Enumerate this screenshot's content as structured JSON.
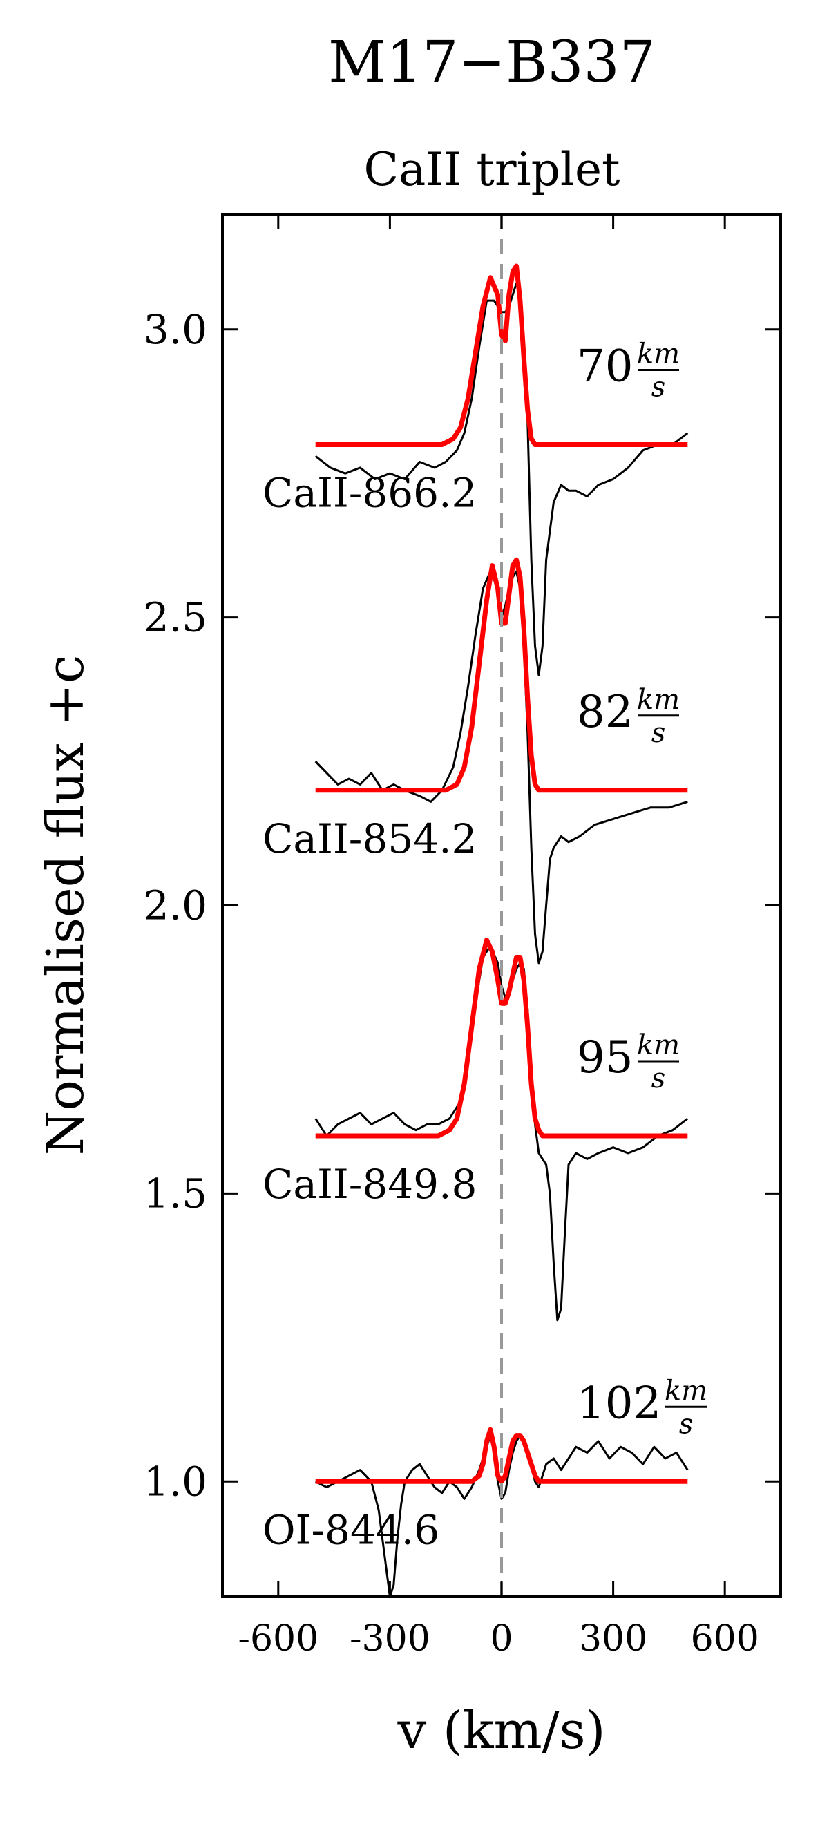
{
  "chart_data": {
    "type": "line",
    "title": "M17−B337",
    "subtitle": "CaII triplet",
    "xlabel": "v (km/s)",
    "ylabel": "Normalised flux +c",
    "xlim": [
      -750,
      750
    ],
    "ylim": [
      0.8,
      3.2
    ],
    "xticks": [
      -600,
      -300,
      0,
      300,
      600
    ],
    "xtick_labels": [
      "-600",
      "-300",
      "0",
      "300",
      "600"
    ],
    "yticks": [
      1.0,
      1.5,
      2.0,
      2.5,
      3.0
    ],
    "ytick_labels": [
      "1.0",
      "1.5",
      "2.0",
      "2.5",
      "3.0"
    ],
    "grid": false,
    "reference_line": {
      "x": 0,
      "style": "dashed",
      "color": "#999999"
    },
    "colors": {
      "observed": "#000000",
      "model": "#ff0000",
      "reference": "#999999"
    },
    "series": [
      {
        "label": "CaII-866.2",
        "width_value": "70",
        "width_unit_num": "km",
        "width_unit_den": "s",
        "observed": {
          "x": [
            -500,
            -460,
            -420,
            -380,
            -340,
            -300,
            -260,
            -220,
            -180,
            -150,
            -120,
            -100,
            -80,
            -60,
            -40,
            -20,
            0,
            10,
            20,
            30,
            40,
            50,
            60,
            70,
            80,
            90,
            100,
            110,
            120,
            140,
            160,
            180,
            200,
            230,
            260,
            300,
            340,
            380,
            420,
            460,
            500
          ],
          "y": [
            2.78,
            2.76,
            2.75,
            2.76,
            2.74,
            2.75,
            2.74,
            2.77,
            2.76,
            2.77,
            2.79,
            2.82,
            2.88,
            2.97,
            3.05,
            3.05,
            3.03,
            3.03,
            3.04,
            3.06,
            3.08,
            3.06,
            2.98,
            2.84,
            2.6,
            2.45,
            2.4,
            2.45,
            2.6,
            2.7,
            2.73,
            2.72,
            2.72,
            2.71,
            2.73,
            2.74,
            2.76,
            2.79,
            2.8,
            2.8,
            2.82
          ]
        },
        "model": {
          "x": [
            -500,
            -200,
            -160,
            -130,
            -110,
            -90,
            -70,
            -50,
            -30,
            -10,
            0,
            10,
            20,
            30,
            40,
            50,
            60,
            70,
            80,
            90,
            110,
            140,
            200,
            500
          ],
          "y": [
            2.8,
            2.8,
            2.8,
            2.81,
            2.83,
            2.88,
            2.96,
            3.04,
            3.09,
            3.06,
            2.99,
            2.98,
            3.06,
            3.1,
            3.11,
            3.05,
            2.95,
            2.86,
            2.81,
            2.8,
            2.8,
            2.8,
            2.8,
            2.8
          ]
        }
      },
      {
        "label": "CaII-854.2",
        "width_value": "82",
        "width_unit_num": "km",
        "width_unit_den": "s",
        "observed": {
          "x": [
            -500,
            -470,
            -440,
            -410,
            -380,
            -350,
            -320,
            -290,
            -260,
            -220,
            -190,
            -160,
            -130,
            -110,
            -90,
            -70,
            -50,
            -30,
            -10,
            0,
            10,
            20,
            30,
            40,
            50,
            60,
            70,
            80,
            90,
            100,
            110,
            120,
            130,
            140,
            160,
            180,
            210,
            250,
            300,
            350,
            400,
            450,
            500
          ],
          "y": [
            2.25,
            2.23,
            2.21,
            2.22,
            2.21,
            2.23,
            2.2,
            2.21,
            2.2,
            2.19,
            2.18,
            2.2,
            2.24,
            2.3,
            2.38,
            2.47,
            2.55,
            2.58,
            2.55,
            2.5,
            2.52,
            2.55,
            2.57,
            2.58,
            2.55,
            2.45,
            2.3,
            2.1,
            1.95,
            1.9,
            1.92,
            2.0,
            2.08,
            2.1,
            2.12,
            2.11,
            2.12,
            2.14,
            2.15,
            2.16,
            2.17,
            2.17,
            2.18
          ]
        },
        "model": {
          "x": [
            -500,
            -200,
            -150,
            -120,
            -100,
            -80,
            -60,
            -40,
            -25,
            -10,
            0,
            10,
            20,
            30,
            40,
            50,
            60,
            70,
            80,
            90,
            100,
            120,
            150,
            200,
            500
          ],
          "y": [
            2.2,
            2.2,
            2.2,
            2.21,
            2.24,
            2.31,
            2.42,
            2.53,
            2.59,
            2.55,
            2.49,
            2.49,
            2.54,
            2.59,
            2.6,
            2.57,
            2.48,
            2.36,
            2.26,
            2.21,
            2.2,
            2.2,
            2.2,
            2.2,
            2.2
          ]
        }
      },
      {
        "label": "CaII-849.8",
        "width_value": "95",
        "width_unit_num": "km",
        "width_unit_den": "s",
        "observed": {
          "x": [
            -500,
            -470,
            -440,
            -410,
            -380,
            -350,
            -320,
            -290,
            -260,
            -230,
            -200,
            -170,
            -140,
            -110,
            -90,
            -70,
            -50,
            -30,
            -10,
            0,
            10,
            20,
            30,
            40,
            50,
            60,
            70,
            80,
            90,
            100,
            110,
            120,
            130,
            140,
            150,
            160,
            170,
            180,
            200,
            230,
            260,
            300,
            340,
            380,
            420,
            460,
            500
          ],
          "y": [
            1.63,
            1.6,
            1.62,
            1.63,
            1.64,
            1.62,
            1.63,
            1.64,
            1.62,
            1.61,
            1.62,
            1.62,
            1.63,
            1.66,
            1.74,
            1.83,
            1.91,
            1.93,
            1.9,
            1.86,
            1.84,
            1.85,
            1.87,
            1.89,
            1.9,
            1.89,
            1.82,
            1.72,
            1.62,
            1.57,
            1.56,
            1.55,
            1.5,
            1.38,
            1.28,
            1.3,
            1.43,
            1.55,
            1.57,
            1.56,
            1.57,
            1.58,
            1.57,
            1.58,
            1.6,
            1.61,
            1.63
          ]
        },
        "model": {
          "x": [
            -500,
            -220,
            -170,
            -140,
            -120,
            -100,
            -80,
            -60,
            -40,
            -25,
            -10,
            0,
            10,
            20,
            30,
            40,
            50,
            60,
            70,
            80,
            90,
            100,
            110,
            130,
            160,
            200,
            500
          ],
          "y": [
            1.6,
            1.6,
            1.6,
            1.61,
            1.63,
            1.69,
            1.79,
            1.89,
            1.94,
            1.92,
            1.87,
            1.83,
            1.83,
            1.85,
            1.88,
            1.91,
            1.91,
            1.87,
            1.79,
            1.69,
            1.63,
            1.61,
            1.6,
            1.6,
            1.6,
            1.6,
            1.6
          ]
        }
      },
      {
        "label": "OI-844.6",
        "width_value": "102",
        "width_unit_num": "km",
        "width_unit_den": "s",
        "observed": {
          "x": [
            -500,
            -470,
            -440,
            -410,
            -380,
            -350,
            -330,
            -320,
            -310,
            -300,
            -290,
            -280,
            -270,
            -260,
            -240,
            -220,
            -200,
            -180,
            -160,
            -140,
            -120,
            -100,
            -80,
            -60,
            -40,
            -30,
            -20,
            -10,
            0,
            10,
            20,
            30,
            40,
            50,
            60,
            70,
            80,
            90,
            100,
            110,
            120,
            140,
            160,
            180,
            200,
            230,
            260,
            290,
            320,
            350,
            380,
            410,
            440,
            470,
            500
          ],
          "y": [
            1.0,
            0.99,
            1.0,
            1.01,
            1.02,
            1.0,
            0.95,
            0.9,
            0.85,
            0.8,
            0.82,
            0.9,
            0.96,
            1.0,
            1.02,
            1.03,
            1.01,
            0.99,
            0.98,
            1.0,
            0.99,
            0.97,
            0.99,
            1.02,
            1.06,
            1.08,
            1.05,
            1.0,
            0.97,
            0.98,
            1.02,
            1.05,
            1.07,
            1.08,
            1.07,
            1.05,
            1.03,
            1.0,
            0.99,
            1.01,
            1.03,
            1.04,
            1.02,
            1.04,
            1.06,
            1.05,
            1.07,
            1.04,
            1.06,
            1.05,
            1.03,
            1.06,
            1.04,
            1.05,
            1.02
          ]
        },
        "model": {
          "x": [
            -500,
            -120,
            -80,
            -60,
            -50,
            -40,
            -30,
            -20,
            -10,
            0,
            10,
            20,
            30,
            40,
            50,
            60,
            70,
            80,
            90,
            100,
            120,
            150,
            500
          ],
          "y": [
            1.0,
            1.0,
            1.0,
            1.01,
            1.03,
            1.07,
            1.09,
            1.06,
            1.01,
            1.0,
            1.01,
            1.04,
            1.07,
            1.08,
            1.08,
            1.07,
            1.05,
            1.03,
            1.01,
            1.0,
            1.0,
            1.0,
            1.0
          ]
        }
      }
    ]
  }
}
